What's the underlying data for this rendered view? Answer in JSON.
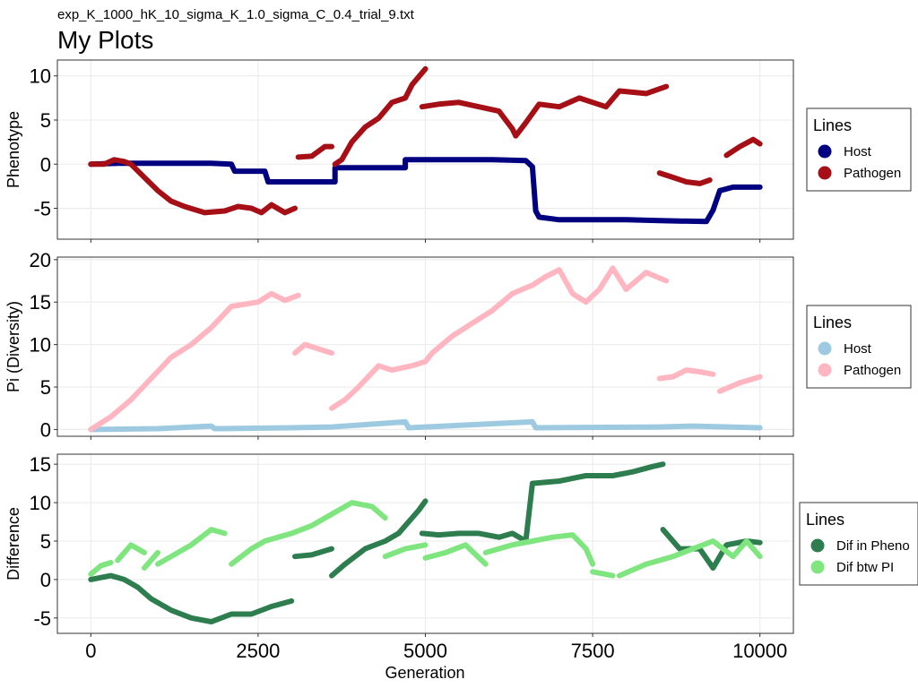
{
  "subtitle": "exp_K_1000_hK_10_sigma_K_1.0_sigma_C_0.4_trial_9.txt",
  "title": "My Plots",
  "chart_data": [
    {
      "type": "scatter",
      "ylabel": "Phenotype",
      "xlim": [
        -500,
        10500
      ],
      "ylim": [
        -8.5,
        11.8
      ],
      "yticks": [
        10,
        5,
        0,
        -5
      ],
      "grid": true,
      "legend": {
        "title": "Lines",
        "placement": "right"
      },
      "series": [
        {
          "name": "Host",
          "color": "#000080",
          "segments": [
            [
              [
                0,
                0
              ],
              [
                400,
                0.1
              ],
              [
                1000,
                0.1
              ],
              [
                1800,
                0.1
              ],
              [
                2100,
                0
              ],
              [
                2150,
                -0.8
              ],
              [
                2600,
                -0.8
              ],
              [
                2650,
                -2
              ],
              [
                3500,
                -2
              ],
              [
                3650,
                -2
              ],
              [
                3650,
                -0.4
              ],
              [
                4700,
                -0.4
              ],
              [
                4700,
                0.5
              ],
              [
                5200,
                0.5
              ],
              [
                6000,
                0.5
              ],
              [
                6500,
                0.4
              ],
              [
                6600,
                -0.3
              ],
              [
                6650,
                -5.3
              ],
              [
                6700,
                -6
              ],
              [
                7000,
                -6.3
              ],
              [
                8000,
                -6.3
              ],
              [
                8500,
                -6.4
              ],
              [
                9200,
                -6.5
              ],
              [
                9300,
                -5.2
              ],
              [
                9400,
                -3
              ],
              [
                9600,
                -2.6
              ],
              [
                10000,
                -2.6
              ]
            ]
          ]
        },
        {
          "name": "Pathogen",
          "color": "#A50F15",
          "segments": [
            [
              [
                0,
                0
              ],
              [
                200,
                0
              ],
              [
                350,
                0.5
              ],
              [
                500,
                0.3
              ],
              [
                600,
                0
              ],
              [
                800,
                -1.5
              ],
              [
                1000,
                -3
              ],
              [
                1200,
                -4.2
              ],
              [
                1400,
                -4.8
              ],
              [
                1700,
                -5.5
              ],
              [
                2000,
                -5.3
              ],
              [
                2200,
                -4.8
              ],
              [
                2400,
                -5
              ],
              [
                2550,
                -5.5
              ],
              [
                2700,
                -4.6
              ],
              [
                2900,
                -5.5
              ],
              [
                3050,
                -5
              ]
            ],
            [
              [
                3100,
                0.8
              ],
              [
                3300,
                0.9
              ],
              [
                3500,
                2
              ],
              [
                3600,
                2
              ]
            ],
            [
              [
                3650,
                0
              ],
              [
                3750,
                0.5
              ],
              [
                3900,
                2.5
              ],
              [
                4100,
                4.2
              ],
              [
                4300,
                5.2
              ],
              [
                4500,
                7
              ],
              [
                4700,
                7.5
              ],
              [
                4800,
                9
              ],
              [
                5000,
                10.8
              ]
            ],
            [
              [
                4950,
                6.5
              ],
              [
                5200,
                6.8
              ],
              [
                5500,
                7
              ],
              [
                5800,
                6.5
              ],
              [
                6100,
                6
              ],
              [
                6300,
                4
              ],
              [
                6350,
                3.2
              ],
              [
                6500,
                4.7
              ],
              [
                6700,
                6.8
              ],
              [
                7000,
                6.5
              ],
              [
                7300,
                7.5
              ],
              [
                7500,
                7
              ],
              [
                7700,
                6.5
              ],
              [
                7900,
                8.3
              ],
              [
                8300,
                8
              ],
              [
                8600,
                8.8
              ]
            ],
            [
              [
                8500,
                -1
              ],
              [
                8700,
                -1.5
              ],
              [
                8900,
                -2
              ],
              [
                9100,
                -2.2
              ],
              [
                9250,
                -1.8
              ]
            ],
            [
              [
                9500,
                1
              ],
              [
                9700,
                2
              ],
              [
                9900,
                2.8
              ],
              [
                10000,
                2.3
              ]
            ]
          ]
        }
      ]
    },
    {
      "type": "scatter",
      "ylabel": "Pi (Diversity)",
      "xlim": [
        -500,
        10500
      ],
      "ylim": [
        -0.8,
        20.3
      ],
      "yticks": [
        20,
        15,
        10,
        5,
        0
      ],
      "grid": true,
      "legend": {
        "title": "Lines",
        "placement": "right"
      },
      "series": [
        {
          "name": "Host",
          "color": "#9ECAE1",
          "segments": [
            [
              [
                0,
                0
              ],
              [
                1000,
                0.1
              ],
              [
                1800,
                0.4
              ],
              [
                1850,
                0.1
              ],
              [
                3000,
                0.2
              ],
              [
                3600,
                0.3
              ],
              [
                4700,
                0.9
              ],
              [
                4750,
                0.2
              ],
              [
                6600,
                0.9
              ],
              [
                6650,
                0.2
              ],
              [
                8500,
                0.3
              ],
              [
                9000,
                0.4
              ],
              [
                10000,
                0.2
              ]
            ]
          ]
        },
        {
          "name": "Pathogen",
          "color": "#FFB6C1",
          "segments": [
            [
              [
                0,
                0
              ],
              [
                300,
                1.5
              ],
              [
                600,
                3.5
              ],
              [
                900,
                6
              ],
              [
                1200,
                8.5
              ],
              [
                1500,
                10
              ],
              [
                1800,
                12
              ],
              [
                2100,
                14.5
              ],
              [
                2500,
                15
              ],
              [
                2700,
                16
              ],
              [
                2900,
                15.2
              ],
              [
                3100,
                15.8
              ]
            ],
            [
              [
                3050,
                9
              ],
              [
                3200,
                10
              ],
              [
                3400,
                9.5
              ],
              [
                3600,
                9
              ]
            ],
            [
              [
                3600,
                2.5
              ],
              [
                3800,
                3.5
              ],
              [
                4000,
                5
              ],
              [
                4300,
                7.5
              ],
              [
                4500,
                7
              ],
              [
                4800,
                7.5
              ],
              [
                5000,
                8
              ],
              [
                5100,
                9
              ],
              [
                5400,
                11
              ],
              [
                5700,
                12.5
              ],
              [
                6000,
                14
              ],
              [
                6300,
                16
              ],
              [
                6600,
                17
              ],
              [
                6800,
                18
              ],
              [
                7000,
                18.8
              ],
              [
                7200,
                16
              ],
              [
                7400,
                15
              ],
              [
                7600,
                16.5
              ],
              [
                7800,
                19
              ],
              [
                8000,
                16.5
              ],
              [
                8300,
                18.5
              ],
              [
                8600,
                17.5
              ]
            ],
            [
              [
                8500,
                6
              ],
              [
                8700,
                6.2
              ],
              [
                8900,
                7
              ],
              [
                9100,
                6.8
              ],
              [
                9300,
                6.5
              ]
            ],
            [
              [
                9400,
                4.5
              ],
              [
                9700,
                5.5
              ],
              [
                10000,
                6.2
              ]
            ]
          ]
        }
      ]
    },
    {
      "type": "scatter",
      "ylabel": "Difference",
      "xlabel": "Generation",
      "xlim": [
        -500,
        10500
      ],
      "ylim": [
        -7,
        16.3
      ],
      "xticks": [
        0,
        2500,
        5000,
        7500,
        10000
      ],
      "yticks": [
        15,
        10,
        5,
        0,
        -5
      ],
      "grid": true,
      "legend": {
        "title": "Lines",
        "placement": "right"
      },
      "series": [
        {
          "name": "Dif in Pheno",
          "color": "#2E7D4F",
          "segments": [
            [
              [
                0,
                0
              ],
              [
                300,
                0.5
              ],
              [
                500,
                0
              ],
              [
                700,
                -1
              ],
              [
                900,
                -2.5
              ],
              [
                1200,
                -4
              ],
              [
                1500,
                -5
              ],
              [
                1800,
                -5.5
              ],
              [
                2100,
                -4.5
              ],
              [
                2400,
                -4.5
              ],
              [
                2700,
                -3.5
              ],
              [
                3000,
                -2.8
              ]
            ],
            [
              [
                3050,
                3
              ],
              [
                3300,
                3.2
              ],
              [
                3600,
                4
              ]
            ],
            [
              [
                3600,
                0.5
              ],
              [
                3800,
                2
              ],
              [
                4100,
                4
              ],
              [
                4400,
                5
              ],
              [
                4600,
                6
              ],
              [
                4900,
                9
              ],
              [
                5000,
                10.2
              ]
            ],
            [
              [
                4950,
                6
              ],
              [
                5200,
                5.8
              ],
              [
                5500,
                6
              ],
              [
                5800,
                6
              ],
              [
                6100,
                5.5
              ],
              [
                6300,
                6
              ],
              [
                6500,
                5
              ],
              [
                6600,
                12.5
              ],
              [
                7000,
                12.8
              ],
              [
                7400,
                13.5
              ],
              [
                7800,
                13.5
              ],
              [
                8100,
                14
              ],
              [
                8400,
                14.7
              ],
              [
                8550,
                15
              ]
            ],
            [
              [
                8550,
                6.5
              ],
              [
                8800,
                4
              ],
              [
                9100,
                4
              ],
              [
                9300,
                1.5
              ],
              [
                9500,
                4.5
              ],
              [
                9800,
                5
              ],
              [
                10000,
                4.8
              ]
            ]
          ]
        },
        {
          "name": "Dif btw PI",
          "color": "#7FE57F",
          "segments": [
            [
              [
                0,
                0.7
              ],
              [
                150,
                1.8
              ],
              [
                300,
                2.2
              ]
            ],
            [
              [
                400,
                2.5
              ],
              [
                600,
                4.5
              ],
              [
                800,
                3.5
              ]
            ],
            [
              [
                800,
                1.5
              ],
              [
                1000,
                3.5
              ]
            ],
            [
              [
                1000,
                2
              ],
              [
                1200,
                3
              ],
              [
                1500,
                4.5
              ],
              [
                1800,
                6.5
              ],
              [
                2000,
                6
              ]
            ],
            [
              [
                2100,
                2
              ],
              [
                2400,
                4
              ],
              [
                2600,
                5
              ],
              [
                3000,
                6
              ],
              [
                3300,
                7
              ],
              [
                3600,
                8.5
              ],
              [
                3900,
                10
              ],
              [
                4200,
                9.5
              ],
              [
                4400,
                8
              ]
            ],
            [
              [
                4400,
                3
              ],
              [
                4700,
                4
              ],
              [
                5000,
                4.5
              ]
            ],
            [
              [
                5000,
                2.8
              ],
              [
                5300,
                3.5
              ],
              [
                5600,
                4.5
              ],
              [
                5900,
                2
              ]
            ],
            [
              [
                5900,
                3.5
              ],
              [
                6300,
                4.5
              ],
              [
                6600,
                5
              ],
              [
                6900,
                5.5
              ],
              [
                7200,
                5.8
              ],
              [
                7400,
                4
              ],
              [
                7500,
                2
              ]
            ],
            [
              [
                7500,
                1
              ],
              [
                7800,
                0.5
              ]
            ],
            [
              [
                7900,
                0.5
              ],
              [
                8300,
                2
              ],
              [
                8700,
                3
              ],
              [
                9000,
                4
              ],
              [
                9300,
                5
              ],
              [
                9600,
                3
              ],
              [
                9800,
                5
              ],
              [
                10000,
                3
              ]
            ]
          ]
        }
      ]
    }
  ]
}
